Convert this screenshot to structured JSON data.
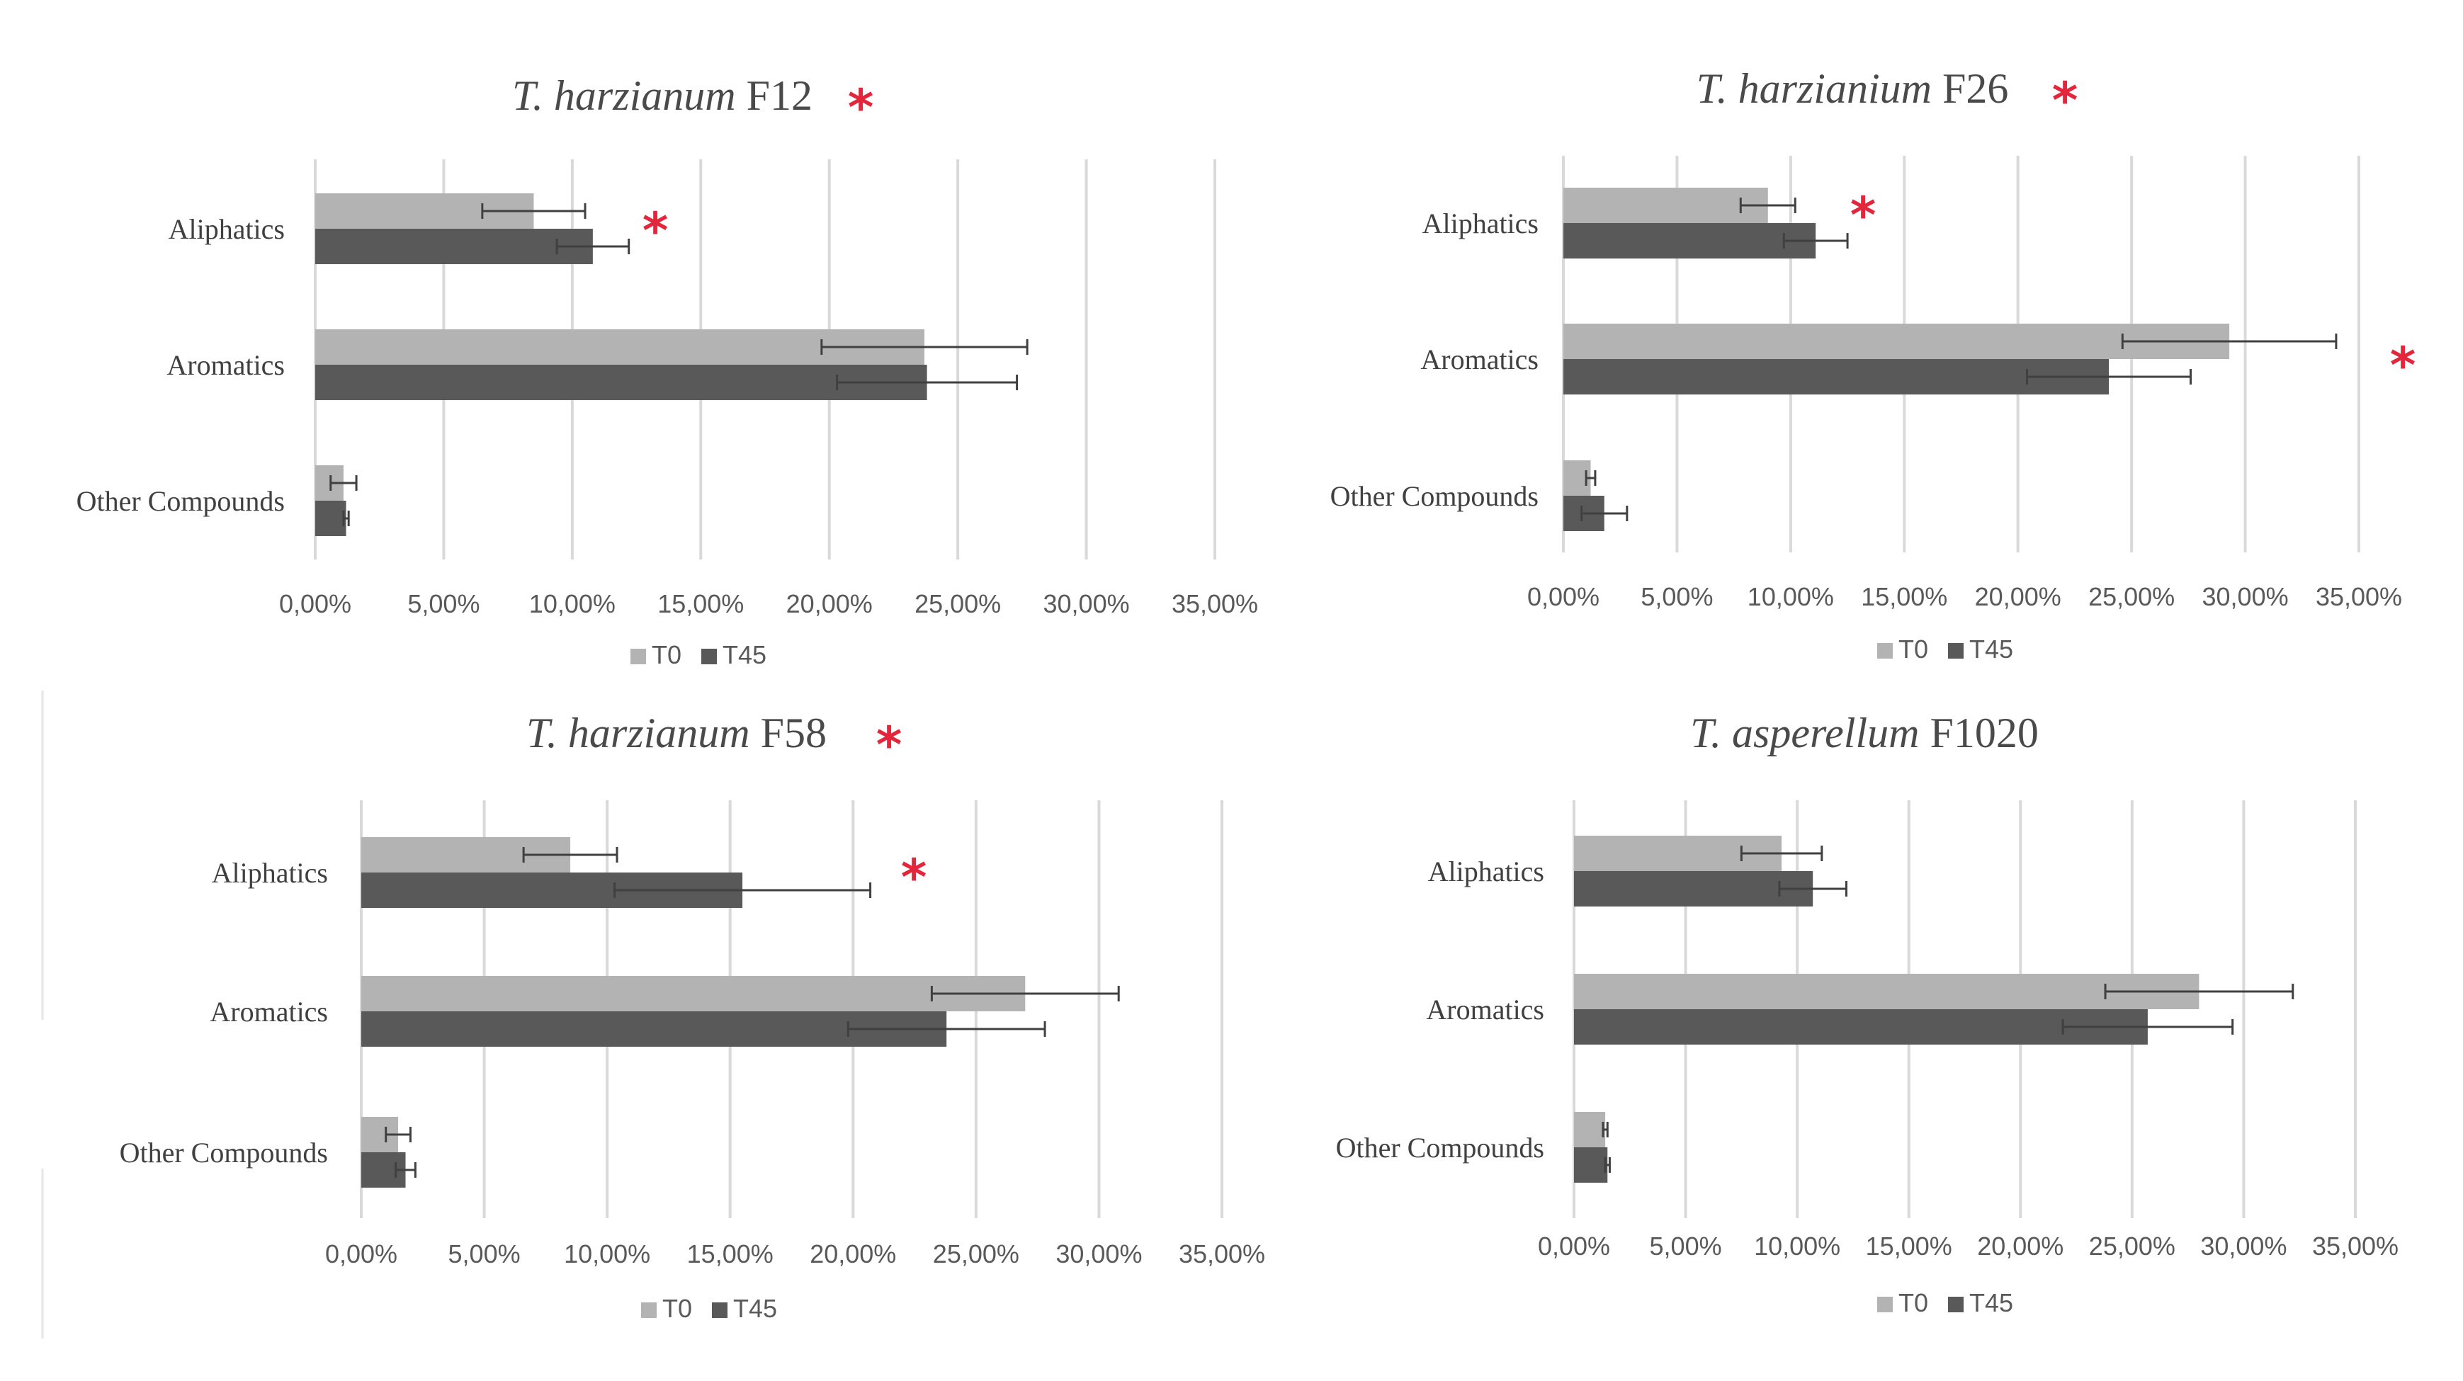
{
  "colors": {
    "t0": "#b3b3b3",
    "t45": "#595959",
    "grid": "#d9d9d9",
    "error": "#404040",
    "star": "#e3263c"
  },
  "chart_data": [
    {
      "type": "bar",
      "orientation": "horizontal",
      "title_italic": "T. harzianum",
      "title_rest": "F12",
      "title_star": "*",
      "categories": [
        "Aliphatics",
        "Aromatics",
        "Other Compounds"
      ],
      "xlim": [
        0,
        0.35
      ],
      "ticks": [
        "0,00%",
        "5,00%",
        "10,00%",
        "15,00%",
        "20,00%",
        "25,00%",
        "30,00%",
        "35,00%"
      ],
      "series": [
        {
          "name": "T0",
          "values": [
            0.085,
            0.237,
            0.011
          ],
          "errors": [
            0.02,
            0.04,
            0.005
          ]
        },
        {
          "name": "T45",
          "values": [
            0.108,
            0.238,
            0.012
          ],
          "errors": [
            0.014,
            0.035,
            0.001
          ]
        }
      ],
      "significance": [
        "*",
        "",
        ""
      ]
    },
    {
      "type": "bar",
      "orientation": "horizontal",
      "title_italic": "T. harzianium",
      "title_rest": "F26",
      "title_star": "*",
      "categories": [
        "Aliphatics",
        "Aromatics",
        "Other Compounds"
      ],
      "xlim": [
        0,
        0.35
      ],
      "ticks": [
        "0,00%",
        "5,00%",
        "10,00%",
        "15,00%",
        "20,00%",
        "25,00%",
        "30,00%",
        "35,00%"
      ],
      "series": [
        {
          "name": "T0",
          "values": [
            0.09,
            0.293,
            0.012
          ],
          "errors": [
            0.012,
            0.047,
            0.002
          ]
        },
        {
          "name": "T45",
          "values": [
            0.111,
            0.24,
            0.018
          ],
          "errors": [
            0.014,
            0.036,
            0.01
          ]
        }
      ],
      "significance": [
        "*",
        "*",
        ""
      ]
    },
    {
      "type": "bar",
      "orientation": "horizontal",
      "title_italic": "T. harzianum",
      "title_rest": "F58",
      "title_star": "*",
      "categories": [
        "Aliphatics",
        "Aromatics",
        "Other Compounds"
      ],
      "xlim": [
        0,
        0.35
      ],
      "ticks": [
        "0,00%",
        "5,00%",
        "10,00%",
        "15,00%",
        "20,00%",
        "25,00%",
        "30,00%",
        "35,00%"
      ],
      "series": [
        {
          "name": "T0",
          "values": [
            0.085,
            0.27,
            0.015
          ],
          "errors": [
            0.019,
            0.038,
            0.005
          ]
        },
        {
          "name": "T45",
          "values": [
            0.155,
            0.238,
            0.018
          ],
          "errors": [
            0.052,
            0.04,
            0.004
          ]
        }
      ],
      "significance": [
        "*",
        "",
        ""
      ]
    },
    {
      "type": "bar",
      "orientation": "horizontal",
      "title_italic": "T. asperellum",
      "title_rest": "F1020",
      "title_star": "",
      "categories": [
        "Aliphatics",
        "Aromatics",
        "Other Compounds"
      ],
      "xlim": [
        0,
        0.35
      ],
      "ticks": [
        "0,00%",
        "5,00%",
        "10,00%",
        "15,00%",
        "20,00%",
        "25,00%",
        "30,00%",
        "35,00%"
      ],
      "series": [
        {
          "name": "T0",
          "values": [
            0.093,
            0.28,
            0.014
          ],
          "errors": [
            0.018,
            0.042,
            0.001
          ]
        },
        {
          "name": "T45",
          "values": [
            0.107,
            0.257,
            0.015
          ],
          "errors": [
            0.015,
            0.038,
            0.001
          ]
        }
      ],
      "significance": [
        "",
        "",
        ""
      ]
    }
  ]
}
